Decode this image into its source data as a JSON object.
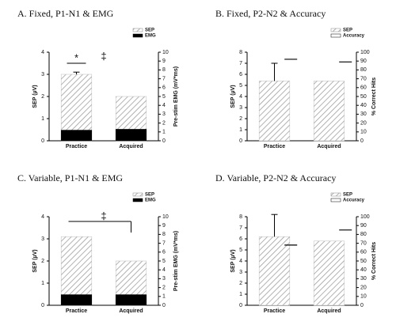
{
  "chart_data": [
    {
      "type": "bar",
      "title": "A. Fixed, P1-N1 & EMG",
      "ylabel": "SEP (µV)",
      "y2label": "Pre-stim EMG (mV*ms)",
      "categories": [
        "Practice",
        "Acquired"
      ],
      "ylim": [
        0,
        4
      ],
      "yticks": [
        0,
        1,
        2,
        3,
        4
      ],
      "y2lim": [
        0,
        10
      ],
      "y2ticks": [
        0,
        1,
        2,
        3,
        4,
        5,
        6,
        7,
        8,
        9,
        10
      ],
      "series": [
        {
          "name": "SEP",
          "color": "#888888",
          "values": [
            3.0,
            2.0
          ],
          "errors": [
            0.1,
            null
          ]
        },
        {
          "name": "EMG",
          "color": "#000000",
          "axis": "y2",
          "values": [
            1.2,
            1.3
          ]
        }
      ],
      "annotations": [
        "*",
        "‡"
      ]
    },
    {
      "type": "bar",
      "title": "B. Fixed, P2-N2 & Accuracy",
      "ylabel": "SEP (µV)",
      "y2label": "% Correct Hits",
      "categories": [
        "Practice",
        "Acquired"
      ],
      "ylim": [
        0,
        8
      ],
      "yticks": [
        0,
        1,
        2,
        3,
        4,
        5,
        6,
        7,
        8
      ],
      "y2lim": [
        0,
        100
      ],
      "y2ticks": [
        0,
        10,
        20,
        30,
        40,
        50,
        60,
        70,
        80,
        90,
        100
      ],
      "series": [
        {
          "name": "SEP",
          "color": "#888888",
          "values": [
            5.4,
            5.4
          ],
          "errors": [
            1.6,
            null
          ]
        },
        {
          "name": "Accuracy",
          "color": "#000000",
          "axis": "y2",
          "marker": "hline",
          "values": [
            92,
            89
          ]
        }
      ],
      "annotations": []
    },
    {
      "type": "bar",
      "title": "C. Variable, P1-N1 & EMG",
      "ylabel": "SEP (µV)",
      "y2label": "Pre-stim EMG (mV*ms)",
      "categories": [
        "Practice",
        "Acquired"
      ],
      "ylim": [
        0,
        4
      ],
      "yticks": [
        0,
        1,
        2,
        3,
        4
      ],
      "y2lim": [
        0,
        10
      ],
      "y2ticks": [
        0,
        1,
        2,
        3,
        4,
        5,
        6,
        7,
        8,
        9,
        10
      ],
      "series": [
        {
          "name": "SEP",
          "color": "#888888",
          "values": [
            3.1,
            2.0
          ],
          "errors": [
            null,
            null
          ]
        },
        {
          "name": "EMG",
          "color": "#000000",
          "axis": "y2",
          "values": [
            1.2,
            1.2
          ]
        }
      ],
      "annotations": [
        "‡"
      ]
    },
    {
      "type": "bar",
      "title": "D. Variable, P2-N2 & Accuracy",
      "ylabel": "SEP (µV)",
      "y2label": "% Correct Hits",
      "categories": [
        "Practice",
        "Acquired"
      ],
      "ylim": [
        0,
        8
      ],
      "yticks": [
        0,
        1,
        2,
        3,
        4,
        5,
        6,
        7,
        8
      ],
      "y2lim": [
        0,
        100
      ],
      "y2ticks": [
        0,
        10,
        20,
        30,
        40,
        50,
        60,
        70,
        80,
        90,
        100
      ],
      "series": [
        {
          "name": "SEP",
          "color": "#888888",
          "values": [
            6.2,
            5.8
          ],
          "errors": [
            2.0,
            null
          ]
        },
        {
          "name": "Accuracy",
          "color": "#000000",
          "axis": "y2",
          "marker": "hline",
          "values": [
            68,
            85
          ]
        }
      ],
      "annotations": []
    }
  ]
}
